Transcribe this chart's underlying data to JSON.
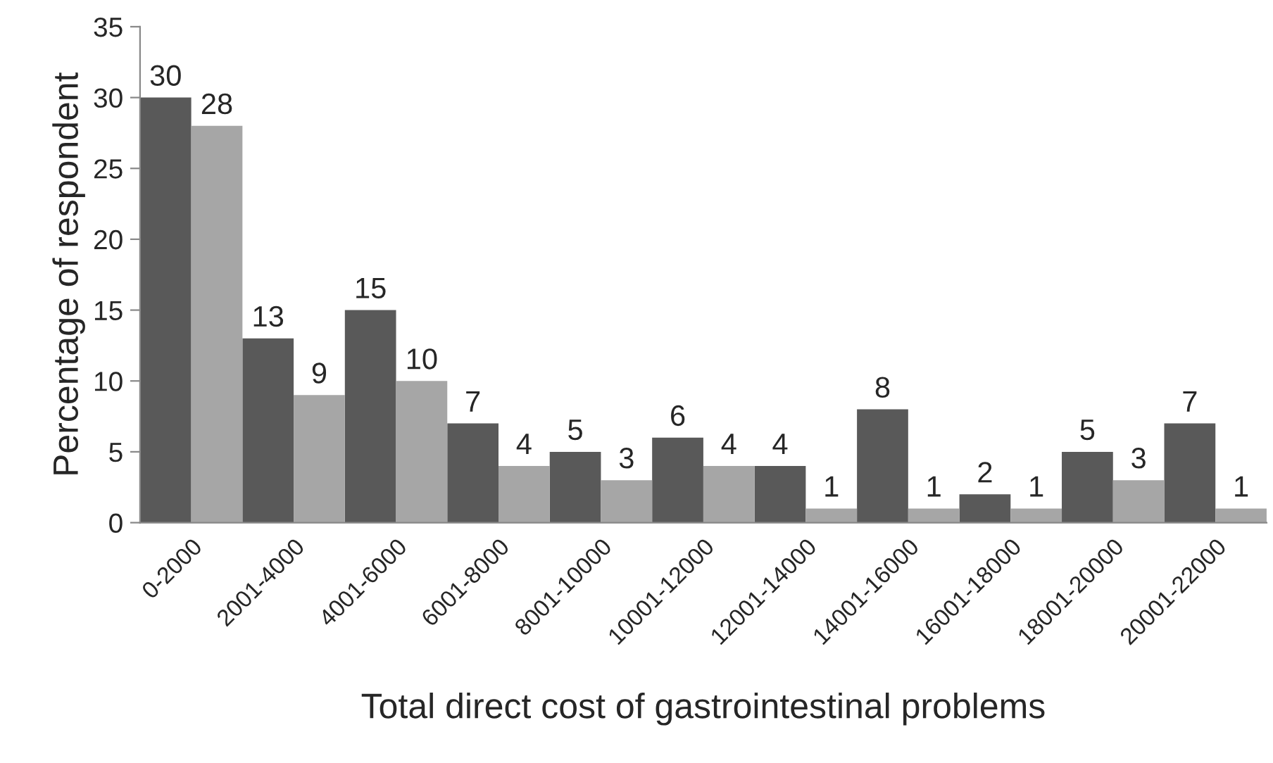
{
  "chart_data": {
    "type": "bar",
    "xlabel": "Total direct cost of gastrointestinal problems",
    "ylabel": "Percentage of respondent",
    "categories": [
      "0-2000",
      "2001-4000",
      "4001-6000",
      "6001-8000",
      "8001-10000",
      "10001-12000",
      "12001-14000",
      "14001-16000",
      "16001-18000",
      "18001-20000",
      "20001-22000"
    ],
    "series": [
      {
        "color": "#595959",
        "values": [
          30,
          13,
          15,
          7,
          5,
          6,
          4,
          8,
          2,
          5,
          7
        ]
      },
      {
        "color": "#a6a6a6",
        "values": [
          28,
          9,
          10,
          4,
          3,
          4,
          1,
          1,
          1,
          3,
          1
        ]
      }
    ],
    "ylim": [
      0,
      35
    ],
    "yticks": [
      0,
      5,
      10,
      15,
      20,
      25,
      30,
      35
    ],
    "grid": false,
    "legend": false,
    "data_labels": true
  }
}
